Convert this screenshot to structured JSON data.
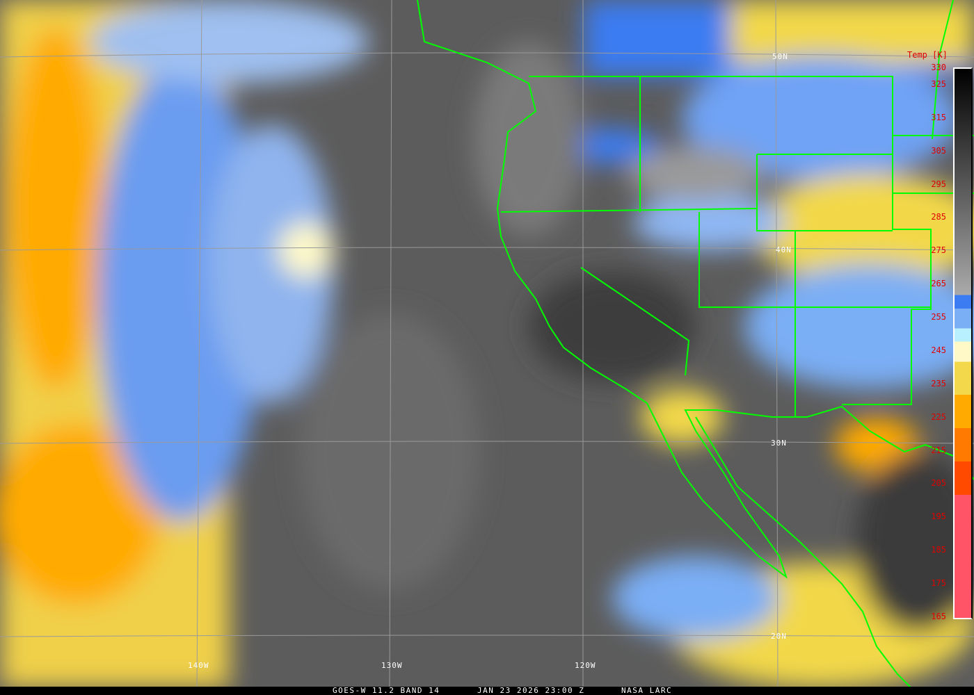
{
  "title": {
    "satellite": "GOES-W 11.2 BAND 14",
    "datetime": "JAN 23 2026 23:00 Z",
    "credit": "NASA LARC"
  },
  "colorbar": {
    "title": "Temp [K]",
    "ticks": [
      "330",
      "325",
      "315",
      "305",
      "295",
      "285",
      "275",
      "265",
      "255",
      "245",
      "235",
      "225",
      "215",
      "205",
      "195",
      "185",
      "175",
      "165"
    ],
    "range_k": [
      165,
      330
    ],
    "colors": {
      "warm_gray_top": "#000000",
      "warm_gray_bottom": "#aaaaaa",
      "blue": "#3b7cf2",
      "light_blue": "#7aaef5",
      "cyan": "#b8f0ff",
      "pale_yellow": "#fff9c8",
      "yellow": "#f2d84a",
      "orange": "#ffaa00",
      "dark_orange": "#ff7a00",
      "red_orange": "#ff4a00",
      "pink": "#ff5468"
    }
  },
  "grid": {
    "lat_labels": [
      "50N",
      "40N",
      "30N",
      "20N"
    ],
    "lon_labels": [
      "140W",
      "130W",
      "120W"
    ]
  },
  "colors": {
    "borders": "#00ff00",
    "gridlines": "#9a9a9a"
  }
}
